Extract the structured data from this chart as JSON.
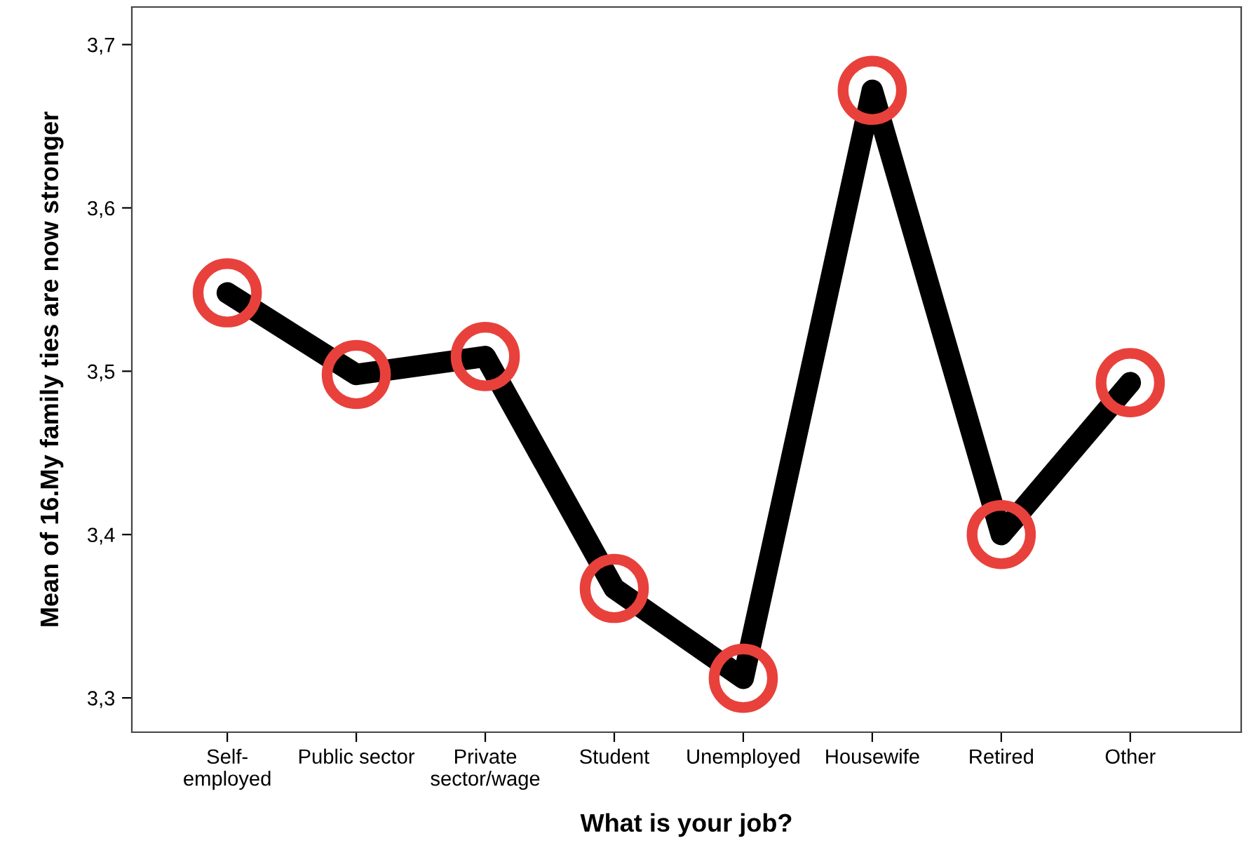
{
  "chart_data": {
    "type": "line",
    "xlabel": "What is your job?",
    "ylabel": "Mean of 16.My family ties are now stronger",
    "categories": [
      "Self-\nemployed",
      "Public sector",
      "Private\nsector/wage",
      "Student",
      "Unemployed",
      "Housewife",
      "Retired",
      "Other"
    ],
    "series": [
      {
        "color": "#000000",
        "colors": [
          "#e8413c",
          "#e8413c",
          "#e8413c",
          "#e8413c",
          "#e8413c",
          "#e8413c",
          "#e8413c",
          "#e8413c"
        ],
        "values": [
          3.548,
          3.498,
          3.509,
          3.367,
          3.312,
          3.672,
          3.4,
          3.493
        ]
      }
    ],
    "ylim": [
      3.279,
      3.723
    ],
    "yticks": [
      {
        "value": 3.3,
        "label": "3,3"
      },
      {
        "value": 3.4,
        "label": "3,4"
      },
      {
        "value": 3.5,
        "label": "3,5"
      },
      {
        "value": 3.6,
        "label": "3,6"
      },
      {
        "value": 3.7,
        "label": "3,7"
      }
    ],
    "marker": "circle",
    "line_style": "solid",
    "grid": false,
    "legend": false
  }
}
